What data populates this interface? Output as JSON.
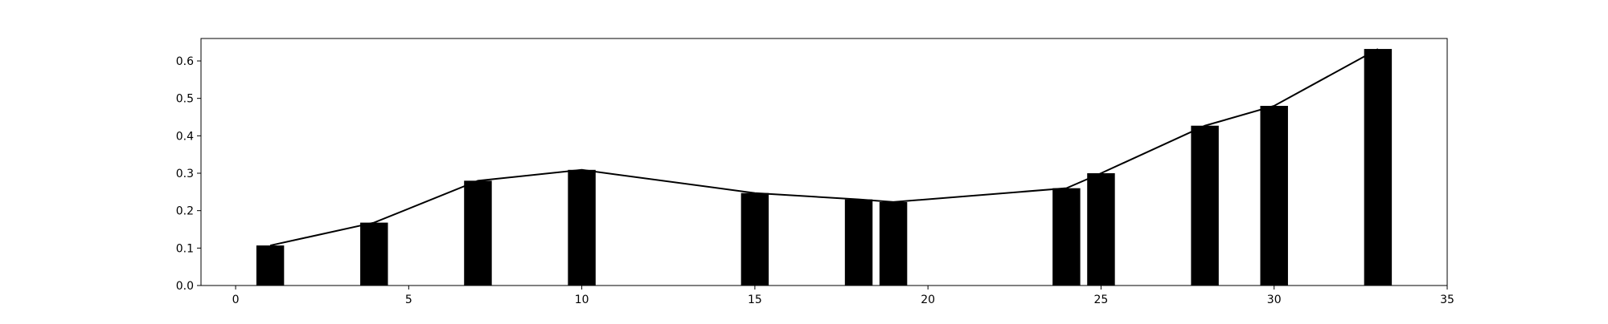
{
  "chart_data": {
    "type": "bar",
    "title": "",
    "xlabel": "",
    "ylabel": "",
    "xlim": [
      -1,
      35
    ],
    "ylim": [
      0,
      0.66
    ],
    "xticks": [
      0,
      5,
      10,
      15,
      20,
      25,
      30,
      35
    ],
    "xtick_labels": [
      "0",
      "5",
      "10",
      "15",
      "20",
      "25",
      "30",
      "35"
    ],
    "yticks": [
      0.0,
      0.1,
      0.2,
      0.3,
      0.4,
      0.5,
      0.6
    ],
    "ytick_labels": [
      "0.0",
      "0.1",
      "0.2",
      "0.3",
      "0.4",
      "0.5",
      "0.6"
    ],
    "grid": false,
    "bar_width": 0.8,
    "series": [
      {
        "type": "bar",
        "color": "#000000",
        "x": [
          1,
          4,
          7,
          10,
          15,
          18,
          19,
          24,
          25,
          28,
          30,
          33
        ],
        "values": [
          0.107,
          0.168,
          0.28,
          0.309,
          0.247,
          0.23,
          0.223,
          0.26,
          0.3,
          0.427,
          0.48,
          0.632
        ]
      },
      {
        "type": "line",
        "color": "#000000",
        "x": [
          1,
          4,
          7,
          10,
          15,
          18,
          19,
          24,
          25,
          28,
          30,
          33
        ],
        "values": [
          0.107,
          0.168,
          0.28,
          0.309,
          0.247,
          0.23,
          0.223,
          0.26,
          0.3,
          0.427,
          0.48,
          0.632
        ]
      }
    ]
  }
}
